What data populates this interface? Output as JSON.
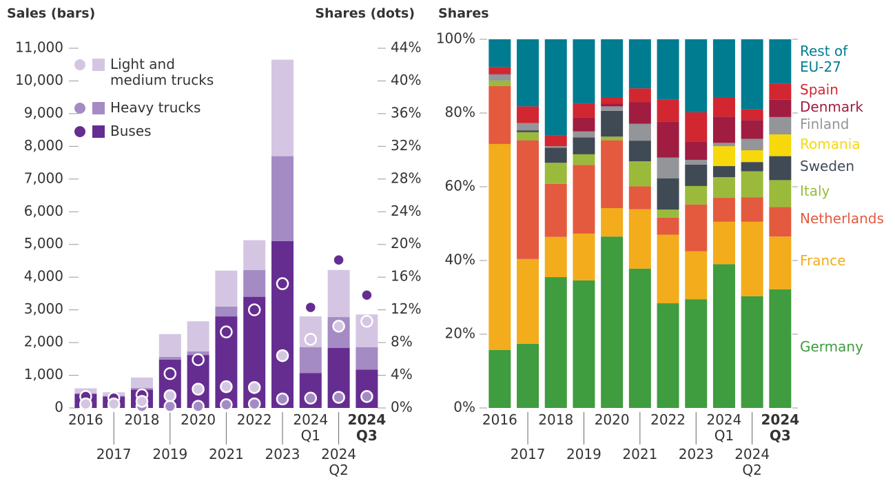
{
  "chart_data": [
    {
      "type": "bar",
      "stacked": true,
      "title": "Sales (bars)",
      "y2_title": "Shares (dots)",
      "categories": [
        "2016",
        "2017",
        "2018",
        "2019",
        "2020",
        "2021",
        "2022",
        "2023",
        "2024 Q1",
        "2024 Q2",
        "2024 Q3"
      ],
      "bold_categories": [
        10
      ],
      "series": [
        {
          "name": "Buses",
          "color": "#662d91",
          "values": [
            430,
            350,
            560,
            1480,
            1620,
            2800,
            3400,
            5100,
            1070,
            1840,
            1170
          ]
        },
        {
          "name": "Heavy trucks",
          "color": "#a58bc4",
          "values": [
            20,
            20,
            50,
            80,
            110,
            300,
            820,
            2600,
            790,
            940,
            690
          ]
        },
        {
          "name": "Light and medium trucks",
          "color": "#d4c6e3",
          "values": [
            150,
            110,
            320,
            700,
            920,
            1100,
            910,
            2950,
            940,
            1440,
            1000
          ]
        },
        {
          "name": "Buses",
          "color": "#662d91",
          "axis": "y2",
          "kind": "dot",
          "values": [
            1.4,
            1.2,
            1.6,
            4.2,
            5.9,
            9.3,
            12.0,
            15.2,
            12.3,
            18.1,
            13.8
          ]
        },
        {
          "name": "Heavy trucks",
          "color": "#a58bc4",
          "axis": "y2",
          "kind": "dot",
          "values": [
            0.3,
            0.3,
            0.2,
            0.2,
            0.2,
            0.4,
            0.5,
            1.1,
            1.2,
            1.3,
            1.4
          ]
        },
        {
          "name": "Light and medium trucks",
          "color": "#d4c6e3",
          "axis": "y2",
          "kind": "dot",
          "values": [
            0.5,
            0.5,
            0.8,
            1.5,
            2.3,
            2.6,
            2.5,
            6.4,
            8.4,
            10.0,
            10.6
          ]
        }
      ],
      "ylim": [
        0,
        11000
      ],
      "yticks": [
        0,
        {
          "value": 1000,
          "label": "1,000"
        },
        {
          "value": 2000,
          "label": "2,000"
        },
        {
          "value": 3000,
          "label": "3,000"
        },
        {
          "value": 4000,
          "label": "4,000"
        },
        {
          "value": 5000,
          "label": "5,000"
        },
        {
          "value": 6000,
          "label": "6,000"
        },
        {
          "value": 7000,
          "label": "7,000"
        },
        {
          "value": 8000,
          "label": "8,000"
        },
        {
          "value": 9000,
          "label": "9,000"
        },
        {
          "value": 10000,
          "label": "10,000"
        },
        {
          "value": 11000,
          "label": "11,000"
        }
      ],
      "y2lim": [
        0,
        44
      ],
      "y2ticks": [
        {
          "value": 0,
          "label": "0%"
        },
        {
          "value": 4,
          "label": "4%"
        },
        {
          "value": 8,
          "label": "8%"
        },
        {
          "value": 12,
          "label": "12%"
        },
        {
          "value": 16,
          "label": "16%"
        },
        {
          "value": 20,
          "label": "20%"
        },
        {
          "value": 24,
          "label": "24%"
        },
        {
          "value": 28,
          "label": "28%"
        },
        {
          "value": 32,
          "label": "32%"
        },
        {
          "value": 36,
          "label": "36%"
        },
        {
          "value": 40,
          "label": "40%"
        },
        {
          "value": 44,
          "label": "44%"
        }
      ],
      "legend": "top-left"
    },
    {
      "type": "bar",
      "stacked": true,
      "title": "Shares",
      "categories": [
        "2016",
        "2017",
        "2018",
        "2019",
        "2020",
        "2021",
        "2022",
        "2023",
        "2024 Q1",
        "2024 Q2",
        "2024 Q3"
      ],
      "bold_categories": [
        10
      ],
      "series": [
        {
          "name": "Germany",
          "color": "#3f9c3f",
          "values": [
            15.7,
            17.4,
            35.5,
            34.6,
            46.5,
            37.8,
            28.4,
            29.5,
            39,
            30.3,
            32.2
          ]
        },
        {
          "name": "France",
          "color": "#f2ac1c",
          "values": [
            55.9,
            23,
            10.9,
            12.7,
            7.7,
            16.1,
            18.6,
            13,
            11.5,
            20.2,
            14.3
          ]
        },
        {
          "name": "Netherlands",
          "color": "#e45a3e",
          "values": [
            15.7,
            32.2,
            14.4,
            18.6,
            18.4,
            6.2,
            4.6,
            12.7,
            6.5,
            6.6,
            8
          ]
        },
        {
          "name": "Italy",
          "color": "#9bba3c",
          "values": [
            1.5,
            2.2,
            5.7,
            2.9,
            1.0,
            6.8,
            2.2,
            5,
            5.6,
            7.1,
            7.3
          ]
        },
        {
          "name": "Sweden",
          "color": "#3f4a55",
          "values": [
            0,
            0.5,
            4.1,
            4.6,
            7.0,
            5.6,
            8.5,
            5.8,
            3,
            2.5,
            6.5
          ]
        },
        {
          "name": "Romania",
          "color": "#f7d80a",
          "values": [
            0,
            0,
            0,
            0,
            0,
            0,
            0,
            0,
            5.4,
            3.2,
            5.9
          ]
        },
        {
          "name": "Finland",
          "color": "#939598",
          "values": [
            1.7,
            2.0,
            0.4,
            1.6,
            1.2,
            4.6,
            5.6,
            1.3,
            0.9,
            3.1,
            4.7
          ]
        },
        {
          "name": "Denmark",
          "color": "#a01c40",
          "values": [
            0.3,
            0,
            0,
            3.7,
            0.8,
            5.8,
            9.8,
            5,
            7.1,
            5.1,
            4.7
          ]
        },
        {
          "name": "Spain",
          "color": "#d22630",
          "values": [
            1.7,
            4.5,
            3,
            3.9,
            1.7,
            3.8,
            5.9,
            7.9,
            5.3,
            2.9,
            4.4
          ]
        },
        {
          "name": "Rest of EU-27",
          "color": "#007c91",
          "values": [
            7.5,
            18.2,
            26,
            17.4,
            15.7,
            13.3,
            16.4,
            19.8,
            15.7,
            19,
            12
          ]
        }
      ],
      "ylim": [
        0,
        100
      ],
      "yticks": [
        {
          "value": 0,
          "label": "0%"
        },
        {
          "value": 20,
          "label": "20%"
        },
        {
          "value": 40,
          "label": "40%"
        },
        {
          "value": 60,
          "label": "60%"
        },
        {
          "value": 80,
          "label": "80%"
        },
        {
          "value": 100,
          "label": "100%"
        }
      ],
      "legend": "right"
    }
  ]
}
